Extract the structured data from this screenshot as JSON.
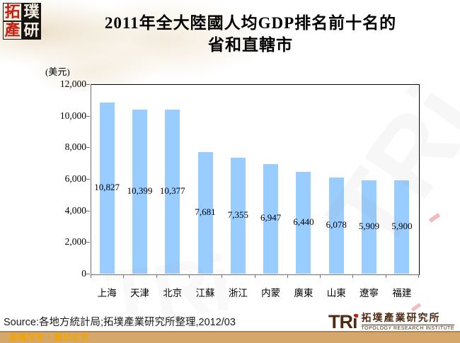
{
  "logo": {
    "chars": [
      "拓",
      "璞",
      "產",
      "研"
    ]
  },
  "title": {
    "line1": "2011年全大陸國人均GDP排名前十名的",
    "line2": "省和直轄市"
  },
  "chart_data": {
    "type": "bar",
    "title": "2011年全大陸國人均GDP排名前十名的省和直轄市",
    "unit_label": "(美元)",
    "categories": [
      "上海",
      "天津",
      "北京",
      "江蘇",
      "浙江",
      "内蒙",
      "廣東",
      "山東",
      "遼寧",
      "福建"
    ],
    "values": [
      10827,
      10399,
      10377,
      7681,
      7355,
      6947,
      6440,
      6078,
      5909,
      5900
    ],
    "value_labels": [
      "10,827",
      "10,399",
      "10,377",
      "7,681",
      "7,355",
      "6,947",
      "6,440",
      "6,078",
      "5,909",
      "5,900"
    ],
    "ylim": [
      0,
      12000
    ],
    "yticks": [
      {
        "value": 0,
        "label": "0"
      },
      {
        "value": 2000,
        "label": "2,000"
      },
      {
        "value": 4000,
        "label": "4,000"
      },
      {
        "value": 6000,
        "label": "6,000"
      },
      {
        "value": 8000,
        "label": "8,000"
      },
      {
        "value": 10000,
        "label": "10,000"
      },
      {
        "value": 12000,
        "label": "12,000"
      }
    ],
    "xlabel": "",
    "ylabel": "(美元)",
    "grid": false,
    "legend": "none",
    "bar_color": "#99CCFF"
  },
  "watermark": {
    "text": "TRi"
  },
  "footer": {
    "source": "Source:各地方統計局;拓墣產業研究所整理,2012/03",
    "copyright": "版權所有 ▪ 翻印必究"
  },
  "brand": {
    "tri": "TRi",
    "cn": "拓墣產業研究所",
    "en": "TOPOLOGY RESEARCH INSTITUTE"
  },
  "colors": {
    "bar": "#99CCFF",
    "axis": "#6e6e6e",
    "copyright_bar": "#d6a76b",
    "copyright_text": "#f0a500",
    "logo_red": "#c42015",
    "brand_brown": "#4d2b15"
  }
}
